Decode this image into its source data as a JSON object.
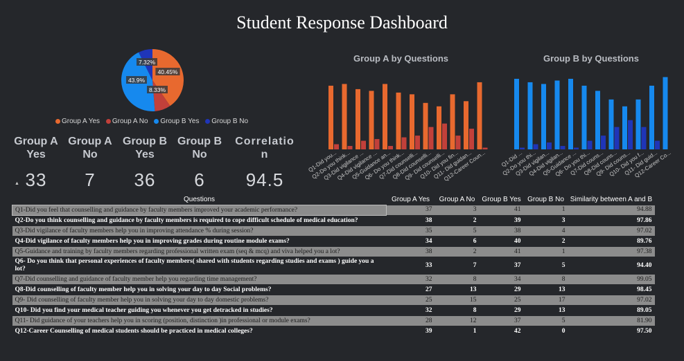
{
  "title": "Student Response Dashboard",
  "colors": {
    "a_yes": "#e8692f",
    "a_no": "#c2403a",
    "b_yes": "#1689ee",
    "b_no": "#1f35b8"
  },
  "pie": {
    "slices": [
      {
        "label": "40.45%",
        "value": 40.45,
        "color": "#e8692f"
      },
      {
        "label": "8.33%",
        "value": 8.33,
        "color": "#c2403a"
      },
      {
        "label": "43.9%",
        "value": 43.9,
        "color": "#1689ee"
      },
      {
        "label": "7.32%",
        "value": 7.32,
        "color": "#1f35b8"
      }
    ]
  },
  "legend": [
    "Group A Yes",
    "Group A No",
    "Group B Yes",
    "Group B No"
  ],
  "kpis": [
    {
      "label": "Group A Yes",
      "value": "33"
    },
    {
      "label": "Group A No",
      "value": "7"
    },
    {
      "label": "Group B Yes",
      "value": "36"
    },
    {
      "label": "Group B No",
      "value": "6"
    },
    {
      "label": "Correlatio n",
      "value": "94.5"
    }
  ],
  "chart_data": [
    {
      "type": "bar",
      "title": "Group A by Questions",
      "categories": [
        "Q1-Did you...",
        "Q2-Do you think...",
        "Q3-Did vigilance ...",
        "Q4-Did vigilance ...",
        "Q5-Guidance an...",
        "Q6- Do you think...",
        "Q7-Did counselli...",
        "Q8-Did counselli...",
        "Q9- Did counselli...",
        "Q10- Did you fin...",
        "Q11- Did guidan...",
        "Q12-Career Coun..."
      ],
      "series": [
        {
          "values": [
            37,
            38,
            35,
            34,
            38,
            33,
            32,
            27,
            25,
            32,
            28,
            39
          ]
        },
        {
          "values": [
            3,
            2,
            5,
            6,
            2,
            7,
            8,
            13,
            15,
            8,
            12,
            1
          ]
        }
      ]
    },
    {
      "type": "bar",
      "title": "Group B by Questions",
      "categories": [
        "Q1-Did ...",
        "Q2-Do you thi...",
        "Q3-Did vigilan...",
        "Q4-Did vigilan...",
        "Q5-Guidance ...",
        "Q6- Do you thi...",
        "Q7-Did couns...",
        "Q8-Did couns...",
        "Q9- Did couns...",
        "Q10- Did you f...",
        "Q11- Did guid...",
        "Q12-Career Co..."
      ],
      "series": [
        {
          "values": [
            41,
            39,
            38,
            40,
            41,
            37,
            34,
            29,
            25,
            29,
            37,
            42
          ]
        },
        {
          "values": [
            1,
            3,
            4,
            2,
            1,
            5,
            8,
            13,
            17,
            13,
            5,
            0
          ]
        }
      ]
    }
  ],
  "table": {
    "headers": [
      "Questions",
      "Group A Yes",
      "Group A No",
      "Group B Yes",
      "Group B No",
      "Similarity between A and B"
    ],
    "rows": [
      [
        "Q1-Did you feel that counselling and guidance by faculty members improved your academic performance?",
        "37",
        "3",
        "41",
        "1",
        "94.88"
      ],
      [
        "Q2-Do you think counselling and guidance by faculty members is required to cope difficult schedule of medical education?",
        "38",
        "2",
        "39",
        "3",
        "97.86"
      ],
      [
        "Q3-Did vigilance of faculty members help you in improving attendance % during session?",
        "35",
        "5",
        "38",
        "4",
        "97.02"
      ],
      [
        "Q4-Did vigilance of faculty members help you in improving grades during routine module exams?",
        "34",
        "6",
        "40",
        "2",
        "89.76"
      ],
      [
        "Q5-Guidance and training by faculty members regarding professional written exam (seq & mcq) and viva helped you a lot?",
        "38",
        "2",
        "41",
        "1",
        "97.38"
      ],
      [
        "Q6- Do you think that personal experiences of faculty members( shared with students regarding studies and exams ) guide you a lot?",
        "33",
        "7",
        "37",
        "5",
        "94.40"
      ],
      [
        "Q7-Did counselling and guidance of faculty member help you regarding time management?",
        "32",
        "8",
        "34",
        "8",
        "99.05"
      ],
      [
        "Q8-Did counselling of faculty member help you in solving your day to day Social problems?",
        "27",
        "13",
        "29",
        "13",
        "98.45"
      ],
      [
        "Q9- Did counselling of faculty member help you in solving your day to day domestic problems?",
        "25",
        "15",
        "25",
        "17",
        "97.02"
      ],
      [
        "Q10- Did you find your medical teacher guiding you whenever you get detracked in studies?",
        "32",
        "8",
        "29",
        "13",
        "89.05"
      ],
      [
        "Q11- Did guidance of your teachers help you in scoring (position, distinction )in professional or module exams?",
        "28",
        "12",
        "37",
        "5",
        "81.90"
      ],
      [
        "Q12-Career Counselling of medical students should be practiced in medical colleges?",
        "39",
        "1",
        "42",
        "0",
        "97.50"
      ]
    ]
  }
}
